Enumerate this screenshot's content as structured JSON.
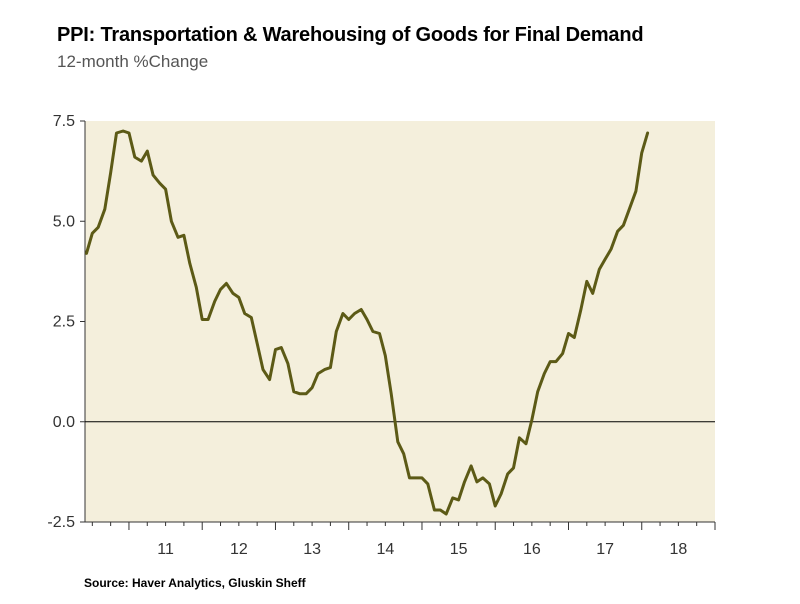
{
  "chart_data": {
    "type": "line",
    "title": "PPI: Transportation & Warehousing of Goods for Final Demand",
    "subtitle": "12-month %Change",
    "source": "Source: Haver Analytics, Gluskin Sheff",
    "xlabel": "",
    "ylabel": "",
    "ylim": [
      -2.5,
      7.5
    ],
    "yticks": [
      7.5,
      5.0,
      2.5,
      0.0,
      -2.5
    ],
    "ytick_labels": [
      "7.5",
      "5.0",
      "2.5",
      "0.0",
      "-2.5"
    ],
    "xlim": [
      2010.4,
      2019.0
    ],
    "xtick_labels": [
      {
        "label": "11",
        "x": 2011.0
      },
      {
        "label": "12",
        "x": 2012.0
      },
      {
        "label": "13",
        "x": 2013.0
      },
      {
        "label": "14",
        "x": 2014.0
      },
      {
        "label": "15",
        "x": 2015.0
      },
      {
        "label": "16",
        "x": 2016.0
      },
      {
        "label": "17",
        "x": 2017.0
      },
      {
        "label": "18",
        "x": 2018.0
      }
    ],
    "year_boundaries": [
      2011,
      2012,
      2013,
      2014,
      2015,
      2016,
      2017,
      2018,
      2019
    ],
    "series": [
      {
        "name": "PPI Transportation & Warehousing 12-month % change",
        "color": "#5c5a16",
        "x": [
          2010.42,
          2010.5,
          2010.58,
          2010.67,
          2010.75,
          2010.83,
          2010.92,
          2011.0,
          2011.08,
          2011.17,
          2011.25,
          2011.33,
          2011.42,
          2011.5,
          2011.58,
          2011.67,
          2011.75,
          2011.83,
          2011.92,
          2012.0,
          2012.08,
          2012.17,
          2012.25,
          2012.33,
          2012.42,
          2012.5,
          2012.58,
          2012.67,
          2012.75,
          2012.83,
          2012.92,
          2013.0,
          2013.08,
          2013.17,
          2013.25,
          2013.33,
          2013.42,
          2013.5,
          2013.58,
          2013.67,
          2013.75,
          2013.83,
          2013.92,
          2014.0,
          2014.08,
          2014.17,
          2014.25,
          2014.33,
          2014.42,
          2014.5,
          2014.58,
          2014.67,
          2014.75,
          2014.83,
          2014.92,
          2015.0,
          2015.08,
          2015.17,
          2015.25,
          2015.33,
          2015.42,
          2015.5,
          2015.58,
          2015.67,
          2015.75,
          2015.83,
          2015.92,
          2016.0,
          2016.08,
          2016.17,
          2016.25,
          2016.33,
          2016.42,
          2016.5,
          2016.58,
          2016.67,
          2016.75,
          2016.83,
          2016.92,
          2017.0,
          2017.08,
          2017.17,
          2017.25,
          2017.33,
          2017.42,
          2017.5,
          2017.58,
          2017.67,
          2017.75,
          2017.83,
          2017.92,
          2018.0,
          2018.08
        ],
        "values": [
          4.2,
          4.7,
          4.85,
          5.3,
          6.2,
          7.2,
          7.25,
          7.2,
          6.6,
          6.5,
          6.75,
          6.15,
          5.95,
          5.8,
          5.0,
          4.6,
          4.65,
          3.95,
          3.35,
          2.55,
          2.55,
          3.0,
          3.3,
          3.45,
          3.2,
          3.1,
          2.7,
          2.6,
          1.95,
          1.3,
          1.05,
          1.8,
          1.85,
          1.45,
          0.75,
          0.7,
          0.7,
          0.85,
          1.2,
          1.3,
          1.35,
          2.25,
          2.7,
          2.55,
          2.7,
          2.8,
          2.55,
          2.25,
          2.2,
          1.65,
          0.7,
          -0.5,
          -0.8,
          -1.4,
          -1.4,
          -1.4,
          -1.55,
          -2.2,
          -2.2,
          -2.3,
          -1.9,
          -1.95,
          -1.5,
          -1.1,
          -1.5,
          -1.4,
          -1.55,
          -2.1,
          -1.8,
          -1.3,
          -1.15,
          -0.4,
          -0.55,
          0.05,
          0.75,
          1.2,
          1.5,
          1.5,
          1.7,
          2.2,
          2.1,
          2.8,
          3.5,
          3.2,
          3.8,
          4.05,
          4.3,
          4.75,
          4.9,
          5.3,
          5.75,
          6.7,
          7.2
        ]
      }
    ],
    "colors": {
      "plot_background": "#f4efdc",
      "line": "#5c5a16",
      "zero_line": "#000000"
    }
  }
}
